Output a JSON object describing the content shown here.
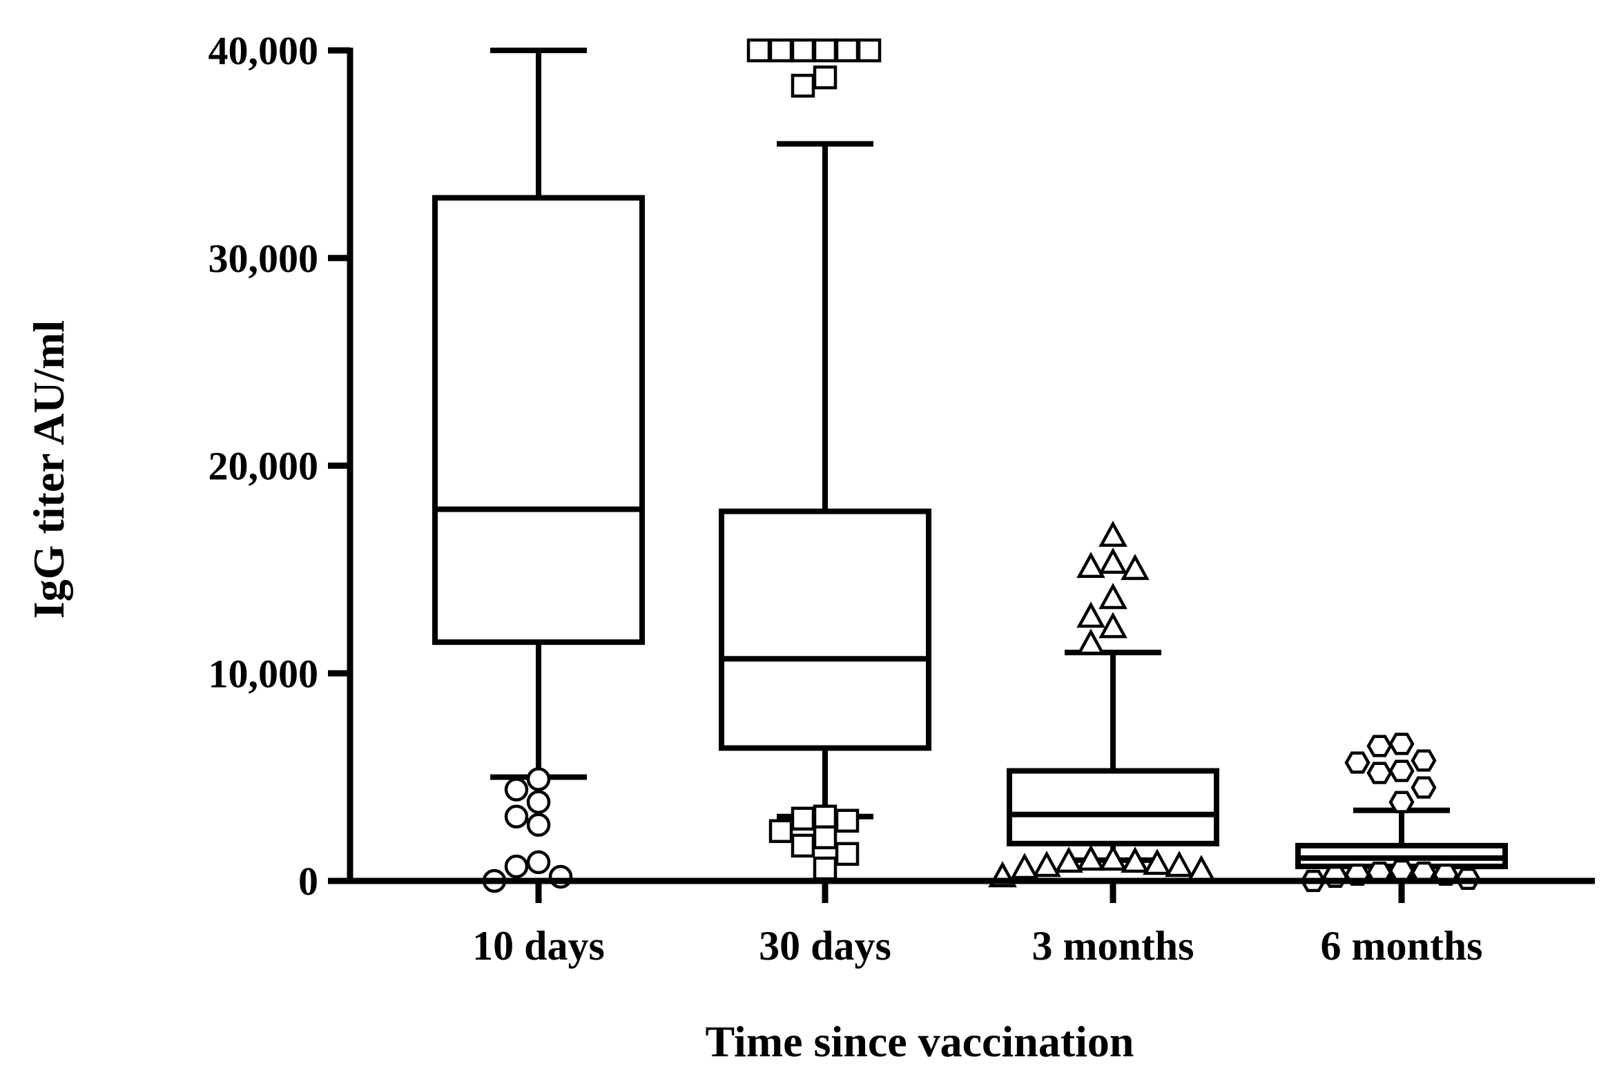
{
  "chart_data": {
    "type": "box",
    "xlabel": "Time since vaccination",
    "ylabel": "IgG titer AU/ml",
    "ylim": [
      0,
      40000
    ],
    "yticks": [
      0,
      10000,
      20000,
      30000,
      40000
    ],
    "ytick_labels": [
      "0",
      "10,000",
      "20,000",
      "30,000",
      "40,000"
    ],
    "grid": false,
    "legend": "none",
    "categories": [
      "10 days",
      "30 days",
      "3 months",
      "6 months"
    ],
    "boxes": [
      {
        "category": "10 days",
        "whisker_low": 5000,
        "q1": 11500,
        "median": 17900,
        "q3": 32900,
        "whisker_high": 40000,
        "marker": "circle",
        "outliers": [
          4900,
          4400,
          3800,
          3100,
          2700,
          900,
          700,
          200,
          0
        ]
      },
      {
        "category": "30 days",
        "whisker_low": 3100,
        "q1": 6400,
        "median": 10700,
        "q3": 17800,
        "whisker_high": 35500,
        "marker": "square",
        "outliers": [
          40000,
          40000,
          40000,
          40000,
          40000,
          40000,
          38700,
          38300,
          3100,
          3000,
          2900,
          2400,
          2100,
          1700,
          1300,
          600
        ]
      },
      {
        "category": "3 months",
        "whisker_low": 1000,
        "q1": 1800,
        "median": 3200,
        "q3": 5300,
        "whisker_high": 11000,
        "marker": "triangle",
        "outliers": [
          16600,
          15300,
          15100,
          15000,
          13600,
          12700,
          12200,
          11400,
          1000,
          1000,
          900,
          900,
          800,
          700,
          700,
          600,
          500,
          200
        ]
      },
      {
        "category": "6 months",
        "whisker_low": 200,
        "q1": 700,
        "median": 1100,
        "q3": 1700,
        "whisker_high": 3400,
        "marker": "hexagon",
        "outliers": [
          6600,
          6500,
          5800,
          5700,
          5300,
          5200,
          4500,
          3800,
          500,
          400,
          400,
          300,
          300,
          200,
          100,
          0
        ]
      }
    ]
  }
}
